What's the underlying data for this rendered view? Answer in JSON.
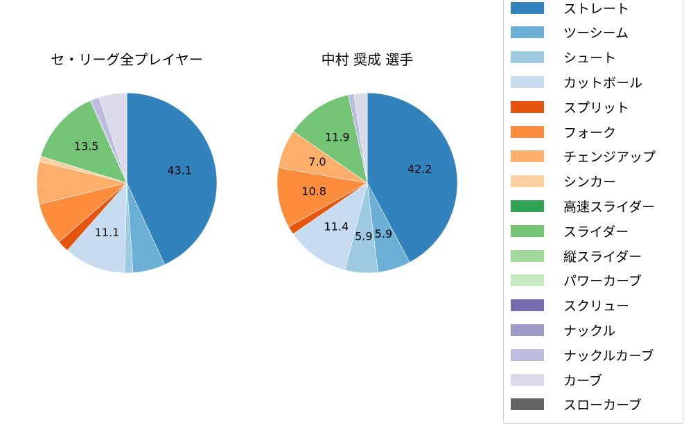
{
  "chart_data": [
    {
      "type": "pie",
      "title": "セ・リーグ全プレイヤー",
      "start_angle": 90,
      "direction": "clockwise",
      "labels_shown_above_pct": 10,
      "slices": [
        {
          "label": "ストレート",
          "value": 43.1,
          "color": "#3182bd"
        },
        {
          "label": "ツーシーム",
          "value": 5.8,
          "color": "#6baed6"
        },
        {
          "label": "シュート",
          "value": 1.5,
          "color": "#9ecae1"
        },
        {
          "label": "カットボール",
          "value": 11.1,
          "color": "#c6dbef"
        },
        {
          "label": "スプリット",
          "value": 2.1,
          "color": "#e6550d"
        },
        {
          "label": "フォーク",
          "value": 7.6,
          "color": "#fd8d3c"
        },
        {
          "label": "チェンジアップ",
          "value": 7.6,
          "color": "#fdae6b"
        },
        {
          "label": "シンカー",
          "value": 1.0,
          "color": "#fdd0a2"
        },
        {
          "label": "高速スライダー",
          "value": 0.0,
          "color": "#31a354"
        },
        {
          "label": "スライダー",
          "value": 13.5,
          "color": "#74c476"
        },
        {
          "label": "縦スライダー",
          "value": 0.0,
          "color": "#a1d99b"
        },
        {
          "label": "パワーカーブ",
          "value": 0.0,
          "color": "#c7e9c0"
        },
        {
          "label": "スクリュー",
          "value": 0.0,
          "color": "#756bb1"
        },
        {
          "label": "ナックル",
          "value": 0.2,
          "color": "#9e9ac8"
        },
        {
          "label": "ナックルカーブ",
          "value": 1.5,
          "color": "#bcbddc"
        },
        {
          "label": "カーブ",
          "value": 5.0,
          "color": "#dadaeb"
        },
        {
          "label": "スローカーブ",
          "value": 0.0,
          "color": "#636363"
        }
      ],
      "visible_labels": [
        "43.1",
        "11.1",
        "13.5"
      ]
    },
    {
      "type": "pie",
      "title": "中村 奨成  選手",
      "start_angle": 90,
      "direction": "clockwise",
      "slices": [
        {
          "label": "ストレート",
          "value": 42.2,
          "color": "#3182bd"
        },
        {
          "label": "ツーシーム",
          "value": 5.9,
          "color": "#6baed6"
        },
        {
          "label": "シュート",
          "value": 5.9,
          "color": "#9ecae1"
        },
        {
          "label": "カットボール",
          "value": 11.4,
          "color": "#c6dbef"
        },
        {
          "label": "スプリット",
          "value": 1.5,
          "color": "#e6550d"
        },
        {
          "label": "フォーク",
          "value": 10.8,
          "color": "#fd8d3c"
        },
        {
          "label": "チェンジアップ",
          "value": 7.0,
          "color": "#fdae6b"
        },
        {
          "label": "スライダー",
          "value": 11.9,
          "color": "#74c476"
        },
        {
          "label": "ナックルカーブ",
          "value": 1.0,
          "color": "#bcbddc"
        },
        {
          "label": "カーブ",
          "value": 2.4,
          "color": "#dadaeb"
        }
      ],
      "visible_labels": [
        "42.2",
        "5.9",
        "5.9",
        "11.4",
        "10.8",
        "7.0",
        "11.9"
      ]
    }
  ],
  "titles": {
    "left": "セ・リーグ全プレイヤー",
    "right": "中村 奨成  選手"
  },
  "legend": {
    "position": "right",
    "items": [
      {
        "label": "ストレート",
        "color": "#3182bd"
      },
      {
        "label": "ツーシーム",
        "color": "#6baed6"
      },
      {
        "label": "シュート",
        "color": "#9ecae1"
      },
      {
        "label": "カットボール",
        "color": "#c6dbef"
      },
      {
        "label": "スプリット",
        "color": "#e6550d"
      },
      {
        "label": "フォーク",
        "color": "#fd8d3c"
      },
      {
        "label": "チェンジアップ",
        "color": "#fdae6b"
      },
      {
        "label": "シンカー",
        "color": "#fdd0a2"
      },
      {
        "label": "高速スライダー",
        "color": "#31a354"
      },
      {
        "label": "スライダー",
        "color": "#74c476"
      },
      {
        "label": "縦スライダー",
        "color": "#a1d99b"
      },
      {
        "label": "パワーカーブ",
        "color": "#c7e9c0"
      },
      {
        "label": "スクリュー",
        "color": "#756bb1"
      },
      {
        "label": "ナックル",
        "color": "#9e9ac8"
      },
      {
        "label": "ナックルカーブ",
        "color": "#bcbddc"
      },
      {
        "label": "カーブ",
        "color": "#dadaeb"
      },
      {
        "label": "スローカーブ",
        "color": "#636363"
      }
    ]
  }
}
